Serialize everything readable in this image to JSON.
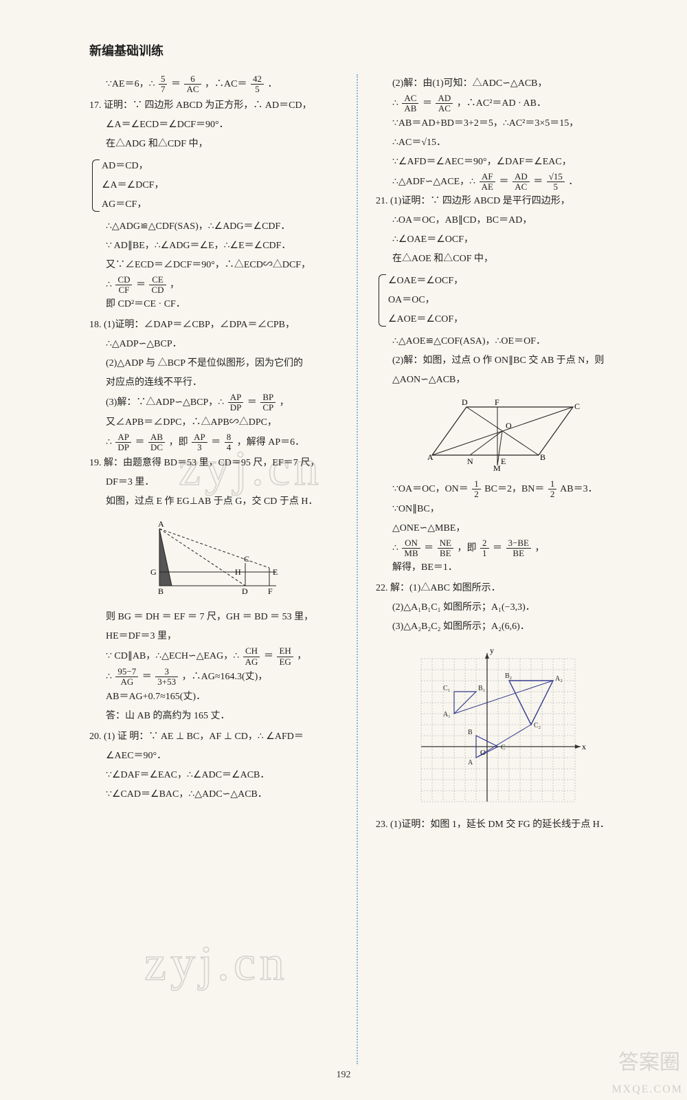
{
  "book_title": "新编基础训练",
  "page_number": "192",
  "watermark_text": "zyj.cn",
  "corner_brand": "答案圈",
  "corner_url": "MXQE.COM",
  "left": {
    "p16_l1": "∵AE＝6，∴",
    "p16_f1n": "5",
    "p16_f1d": "7",
    "p16_eq": "＝",
    "p16_f2n": "6",
    "p16_f2d": "AC",
    "p16_l1b": "，∴AC＝",
    "p16_f3n": "42",
    "p16_f3d": "5",
    "p16_l1c": "．",
    "p17_head": "17. 证明：∵ 四边形 ABCD 为正方形，∴ AD＝CD，",
    "p17_l2": "∠A＝∠ECD＝∠DCF＝90°．",
    "p17_l3": "在△ADG 和△CDF 中，",
    "p17_b1": "AD＝CD，",
    "p17_b2": "∠A＝∠DCF，",
    "p17_b3": "AG＝CF，",
    "p17_l4": "∴△ADG≌△CDF(SAS)，∴∠ADG＝∠CDF．",
    "p17_l5": "∵ AD∥BE，∴∠ADG＝∠E，∴∠E＝∠CDF．",
    "p17_l6": "又∵∠ECD＝∠DCF＝90°，∴△ECD∽△DCF，",
    "p17_l7a": "∴",
    "p17_f4n": "CD",
    "p17_f4d": "CF",
    "p17_l7b": "＝",
    "p17_f5n": "CE",
    "p17_f5d": "CD",
    "p17_l7c": "，",
    "p17_l8": "即 CD²＝CE · CF．",
    "p18_head": "18. (1)证明：∠DAP＝∠CBP，∠DPA＝∠CPB，",
    "p18_l2": "∴△ADP∽△BCP．",
    "p18_l3": "(2)△ADP 与 △BCP 不是位似图形，因为它们的",
    "p18_l4": "对应点的连线不平行．",
    "p18_l5a": "(3)解：∵△ADP∽△BCP，∴",
    "p18_f6n": "AP",
    "p18_f6d": "DP",
    "p18_l5b": "＝",
    "p18_f7n": "BP",
    "p18_f7d": "CP",
    "p18_l5c": "，",
    "p18_l6": "又∠APB＝∠DPC，∴△APB∽△DPC，",
    "p18_l7a": "∴",
    "p18_f8n": "AP",
    "p18_f8d": "DP",
    "p18_l7b": "＝",
    "p18_f9n": "AB",
    "p18_f9d": "DC",
    "p18_l7c": "，即",
    "p18_f10n": "AP",
    "p18_f10d": "3",
    "p18_l7d": "＝",
    "p18_f11n": "8",
    "p18_f11d": "4",
    "p18_l7e": "，解得 AP＝6．",
    "p19_head": "19. 解：由题意得 BD＝53 里，CD＝95 尺，EF＝7 尺，",
    "p19_l2": "DF＝3 里．",
    "p19_l3": "如图，过点 E 作 EG⊥AB 于点 G，交 CD 于点 H．",
    "p19_l4": "则 BG ＝ DH ＝ EF ＝ 7 尺，GH ＝ BD ＝ 53 里，",
    "p19_l5": "HE＝DF＝3 里，",
    "p19_l6a": "∵ CD∥AB，∴△ECH∽△EAG，∴",
    "p19_f12n": "CH",
    "p19_f12d": "AG",
    "p19_l6b": "＝",
    "p19_f13n": "EH",
    "p19_f13d": "EG",
    "p19_l6c": "，",
    "p19_l7a": "∴",
    "p19_f14n": "95−7",
    "p19_f14d": "AG",
    "p19_l7b": "＝",
    "p19_f15n": "3",
    "p19_f15d": "3+53",
    "p19_l7c": "，∴AG≈164.3(丈)，",
    "p19_l8": "AB＝AG+0.7≈165(丈)．",
    "p19_l9": "答：山 AB 的高约为 165 丈．",
    "p20_head": "20. (1) 证 明：∵ AE ⊥ BC，AF ⊥ CD，∴ ∠AFD＝",
    "p20_l2": "∠AEC＝90°．",
    "p20_l3": "∵∠DAF＝∠EAC，∴∠ADC＝∠ACB．",
    "p20_l4": "∵∠CAD＝∠BAC，∴△ADC∽△ACB．"
  },
  "right": {
    "r1": "(2)解：由(1)可知：△ADC∽△ACB，",
    "r2a": "∴",
    "r2_f1n": "AC",
    "r2_f1d": "AB",
    "r2b": "＝",
    "r2_f2n": "AD",
    "r2_f2d": "AC",
    "r2c": "，∴AC²＝AD · AB．",
    "r3": "∵AB＝AD+BD＝3+2＝5，∴AC²＝3×5＝15，",
    "r4": "∴AC＝√15．",
    "r5": "∵∠AFD＝∠AEC＝90°，∠DAF＝∠EAC，",
    "r6a": "∴△ADF∽△ACE，∴",
    "r6_f3n": "AF",
    "r6_f3d": "AE",
    "r6b": "＝",
    "r6_f4n": "AD",
    "r6_f4d": "AC",
    "r6c": "＝",
    "r6_f5n": "√15",
    "r6_f5d": "5",
    "r6d": "．",
    "p21_head": "21. (1)证明：∵ 四边形 ABCD 是平行四边形，",
    "p21_l2": "∴OA＝OC，AB∥CD，BC＝AD，",
    "p21_l3": "∴∠OAE＝∠OCF，",
    "p21_l4": "在△AOE 和△COF 中，",
    "p21_b1": "∠OAE＝∠OCF，",
    "p21_b2": "OA＝OC，",
    "p21_b3": "∠AOE＝∠COF，",
    "p21_l5": "∴△AOE≌△COF(ASA)，∴OE＝OF．",
    "p21_l6": "(2)解：如图，过点 O 作 ON∥BC 交 AB 于点 N，则",
    "p21_l7": "△AON∽△ACB，",
    "p21_l8a": "∵OA＝OC，ON＝",
    "p21_f6n": "1",
    "p21_f6d": "2",
    "p21_l8b": "BC＝2，BN＝",
    "p21_f7n": "1",
    "p21_f7d": "2",
    "p21_l8c": "AB＝3．",
    "p21_l9": "∵ON∥BC，",
    "p21_l10": "△ONE∽△MBE，",
    "p21_l11a": "∴",
    "p21_f8n": "ON",
    "p21_f8d": "MB",
    "p21_l11b": "＝",
    "p21_f9n": "NE",
    "p21_f9d": "BE",
    "p21_l11c": "，即",
    "p21_f10n": "2",
    "p21_f10d": "1",
    "p21_l11d": "＝",
    "p21_f11n": "3−BE",
    "p21_f11d": "BE",
    "p21_l11e": "，",
    "p21_l12": "解得，BE＝1．",
    "p22_head": "22. 解：(1)△ABC 如图所示．",
    "p22_l2": "(2)△A₁B₁C₁ 如图所示；A₁(−3,3)．",
    "p22_l3": "(3)△A₂B₂C₂ 如图所示；A₂(6,6)．",
    "p23_head": "23. (1)证明：如图 1，延长 DM 交 FG 的延长线于点 H．"
  },
  "fig19_labels": {
    "A": "A",
    "B": "B",
    "C": "C",
    "D": "D",
    "E": "E",
    "F": "F",
    "G": "G",
    "H": "H"
  },
  "fig21_labels": {
    "A": "A",
    "B": "B",
    "C": "C",
    "D": "D",
    "E": "E",
    "F": "F",
    "M": "M",
    "N": "N",
    "O": "O"
  },
  "fig22": {
    "grid_color": "#bdbdbd",
    "axis_color": "#333",
    "triangle_color": "#353b8f",
    "xlabel": "x",
    "ylabel": "y",
    "origin": "O",
    "A1": "A₁",
    "B1": "B₁",
    "C1": "C₁",
    "A2": "A₂",
    "B2": "B₂",
    "C2": "C₂",
    "A": "A",
    "B": "B",
    "C": "C"
  }
}
